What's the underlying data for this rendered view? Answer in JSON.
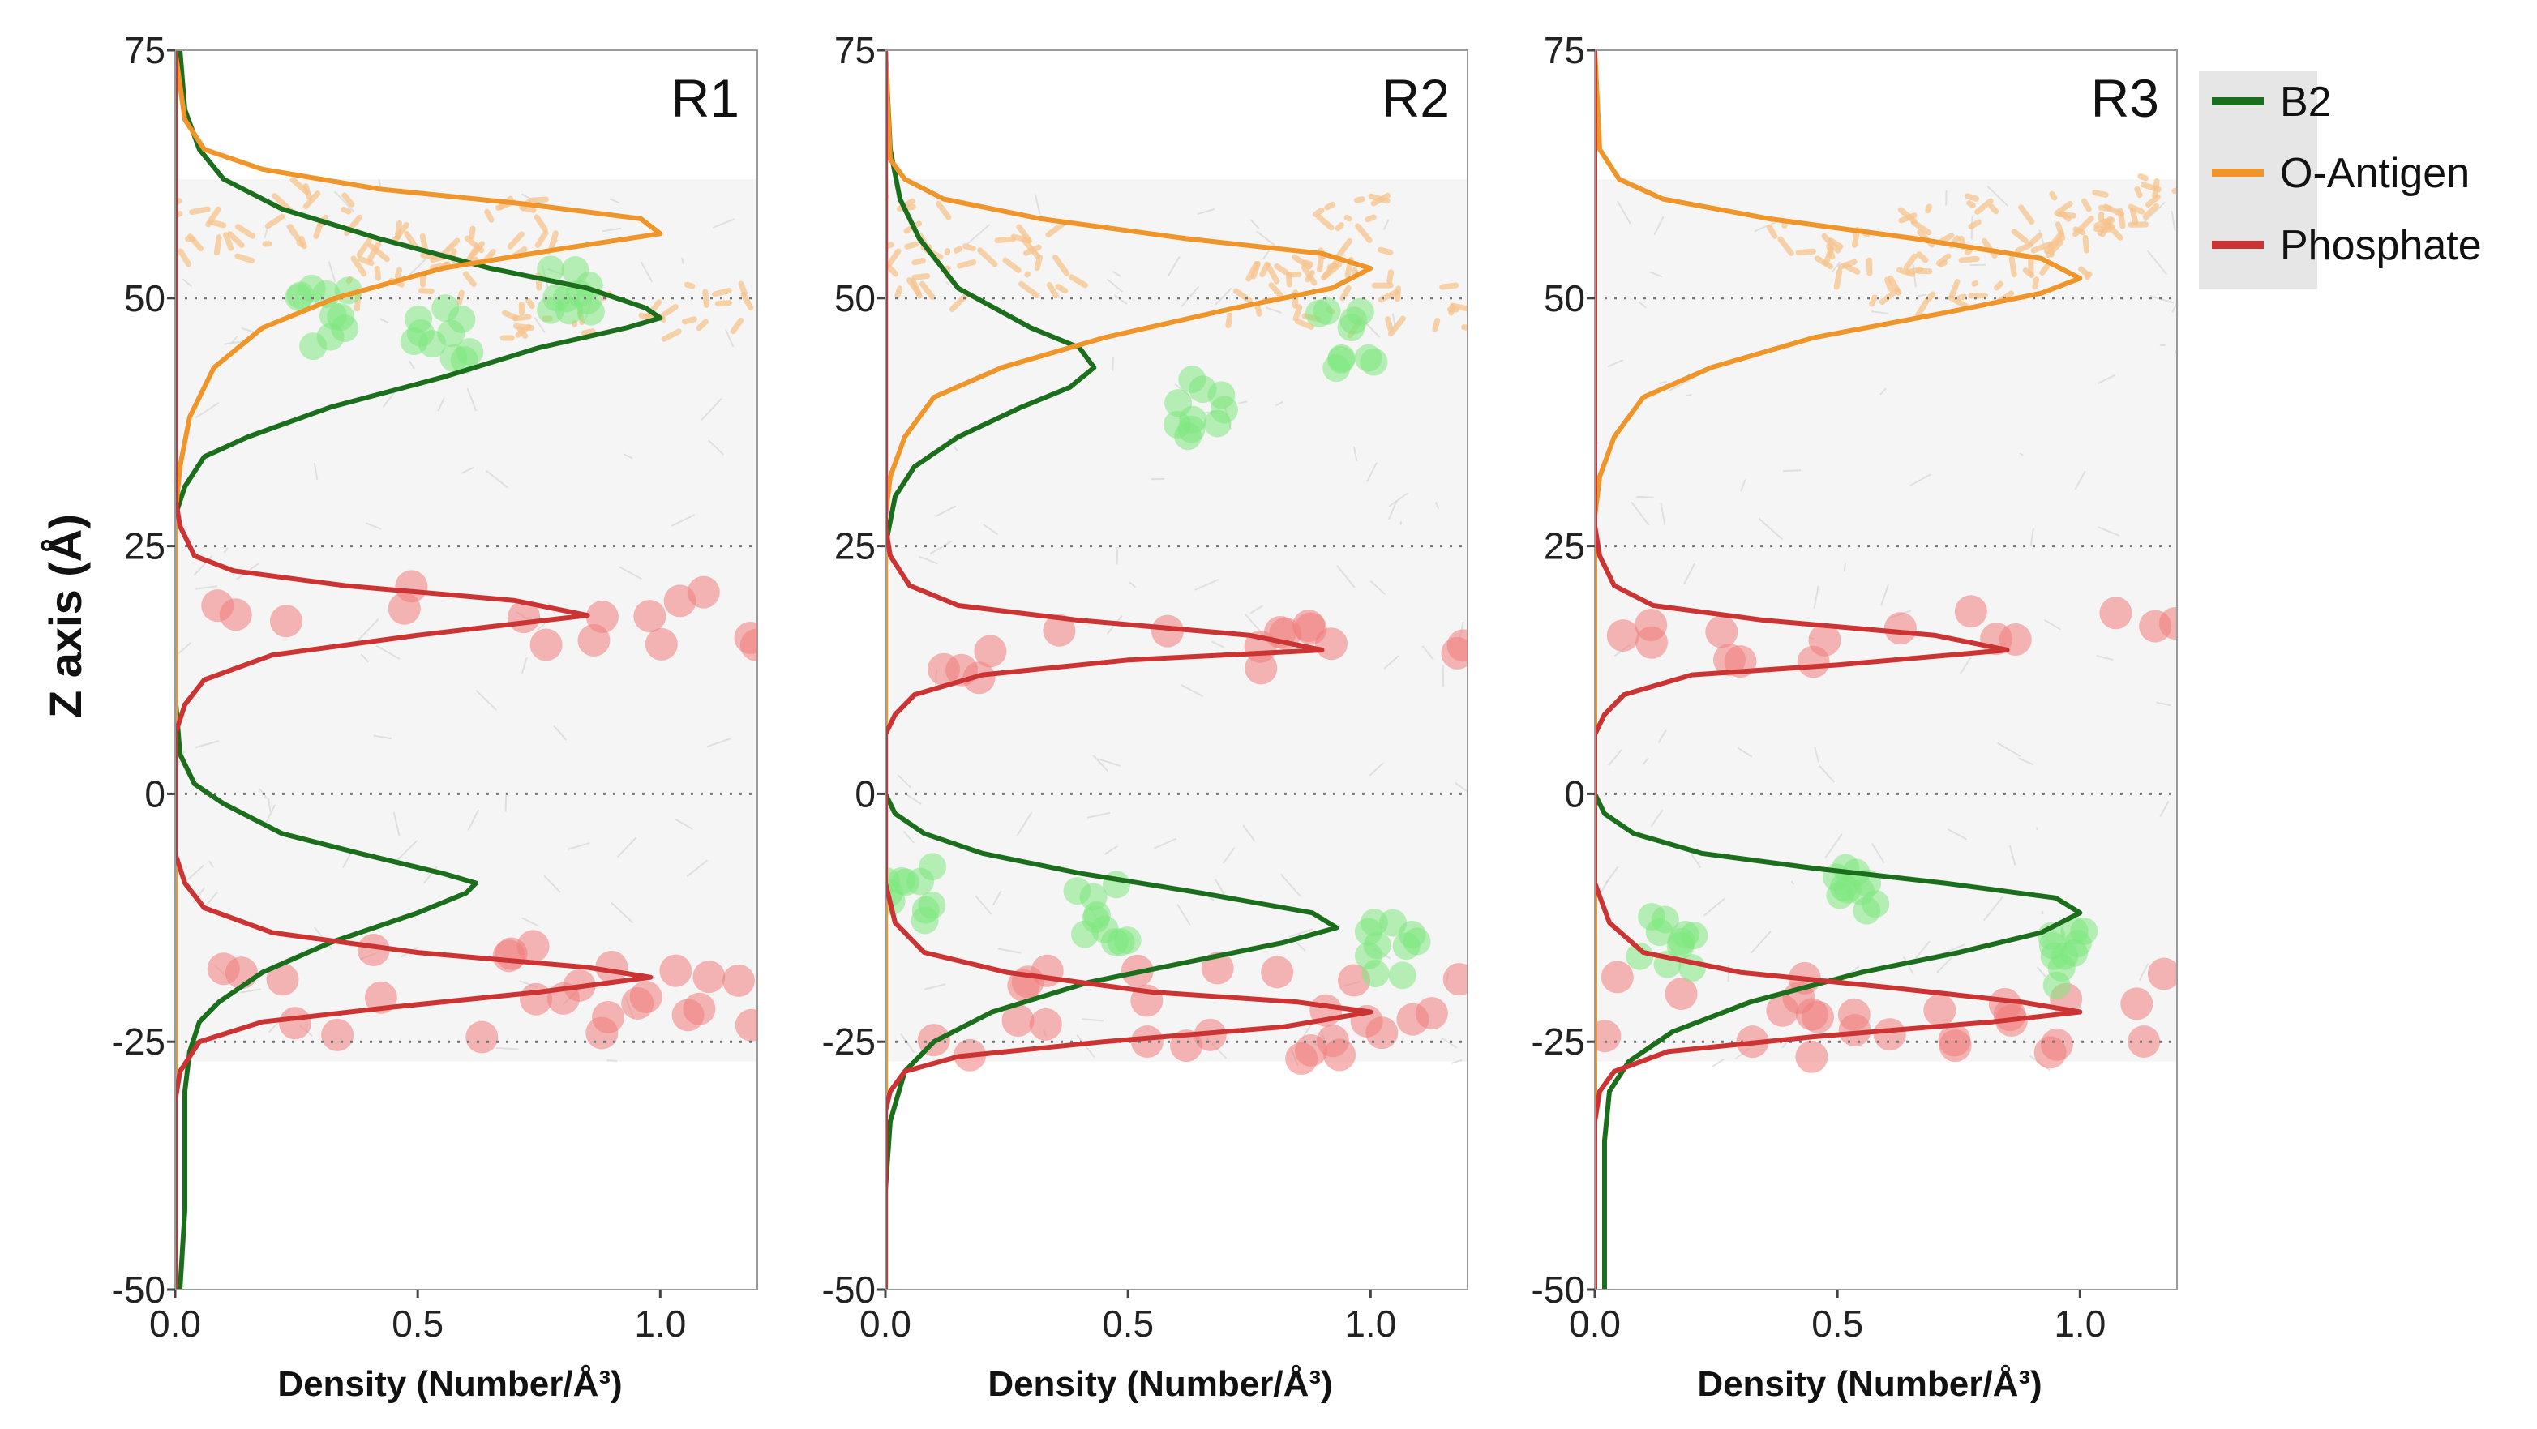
{
  "chart_data": {
    "type": "line",
    "orientation": "density on x, position on y",
    "ylabel": "Z axis (Å)",
    "xlabel": "Density (Number/Å³)",
    "xlim": [
      0,
      1.2
    ],
    "ylim": [
      -50,
      75
    ],
    "xticks": [
      "0.0",
      "0.5",
      "1.0"
    ],
    "yticks": [
      "75",
      "50",
      "25",
      "0",
      "-25",
      "-50"
    ],
    "ref_lines_y": [
      50,
      25,
      0,
      -25
    ],
    "legend": {
      "position": "right",
      "entries": [
        {
          "name": "B2",
          "color": "#1b6e1b"
        },
        {
          "name": "O-Antigen",
          "color": "#f0952a"
        },
        {
          "name": "Phosphate",
          "color": "#cc3333"
        }
      ]
    },
    "panels": [
      {
        "label": "R1",
        "series": [
          {
            "name": "B2",
            "color": "#1b6e1b",
            "points": [
              [
                0.01,
                -50
              ],
              [
                0.02,
                -42
              ],
              [
                0.02,
                -30
              ],
              [
                0.03,
                -26
              ],
              [
                0.05,
                -23
              ],
              [
                0.09,
                -21
              ],
              [
                0.18,
                -18
              ],
              [
                0.32,
                -15
              ],
              [
                0.5,
                -12
              ],
              [
                0.6,
                -10
              ],
              [
                0.62,
                -9
              ],
              [
                0.55,
                -8
              ],
              [
                0.38,
                -6
              ],
              [
                0.22,
                -4
              ],
              [
                0.1,
                -1
              ],
              [
                0.04,
                1
              ],
              [
                0.01,
                4
              ],
              [
                0.0,
                10
              ],
              [
                0.0,
                20
              ],
              [
                0.0,
                28
              ],
              [
                0.02,
                31
              ],
              [
                0.06,
                34
              ],
              [
                0.15,
                36
              ],
              [
                0.32,
                39
              ],
              [
                0.55,
                42
              ],
              [
                0.75,
                45
              ],
              [
                0.93,
                47
              ],
              [
                1.0,
                48
              ],
              [
                0.97,
                49
              ],
              [
                0.85,
                51
              ],
              [
                0.65,
                53
              ],
              [
                0.42,
                56
              ],
              [
                0.22,
                59
              ],
              [
                0.1,
                62
              ],
              [
                0.05,
                65
              ],
              [
                0.02,
                69
              ],
              [
                0.01,
                75
              ]
            ]
          },
          {
            "name": "O-Antigen",
            "color": "#f0952a",
            "points": [
              [
                0.0,
                -50
              ],
              [
                0.0,
                28
              ],
              [
                0.01,
                33
              ],
              [
                0.03,
                38
              ],
              [
                0.08,
                43
              ],
              [
                0.18,
                47
              ],
              [
                0.33,
                50
              ],
              [
                0.55,
                53
              ],
              [
                0.8,
                55
              ],
              [
                1.0,
                56.5
              ],
              [
                0.96,
                58
              ],
              [
                0.72,
                59.5
              ],
              [
                0.42,
                61
              ],
              [
                0.18,
                63
              ],
              [
                0.06,
                65
              ],
              [
                0.02,
                68
              ],
              [
                0.0,
                75
              ]
            ]
          },
          {
            "name": "Phosphate",
            "color": "#cc3333",
            "points": [
              [
                0.0,
                -50
              ],
              [
                0.0,
                -31
              ],
              [
                0.01,
                -28
              ],
              [
                0.05,
                -25
              ],
              [
                0.18,
                -23
              ],
              [
                0.45,
                -21.5
              ],
              [
                0.75,
                -20
              ],
              [
                0.98,
                -18.5
              ],
              [
                0.85,
                -17.5
              ],
              [
                0.5,
                -16
              ],
              [
                0.2,
                -14
              ],
              [
                0.06,
                -11.5
              ],
              [
                0.02,
                -9
              ],
              [
                0.0,
                -6
              ],
              [
                0.0,
                6
              ],
              [
                0.02,
                9
              ],
              [
                0.06,
                11.5
              ],
              [
                0.2,
                14
              ],
              [
                0.5,
                16
              ],
              [
                0.85,
                18
              ],
              [
                0.7,
                19.5
              ],
              [
                0.35,
                21
              ],
              [
                0.12,
                22.5
              ],
              [
                0.04,
                24
              ],
              [
                0.01,
                27
              ],
              [
                0.0,
                30
              ],
              [
                0.0,
                75
              ]
            ]
          }
        ]
      },
      {
        "label": "R2",
        "series": [
          {
            "name": "B2",
            "color": "#1b6e1b",
            "points": [
              [
                0.0,
                -50
              ],
              [
                0.0,
                -40
              ],
              [
                0.01,
                -33
              ],
              [
                0.04,
                -28
              ],
              [
                0.1,
                -25
              ],
              [
                0.22,
                -22
              ],
              [
                0.42,
                -19
              ],
              [
                0.62,
                -17
              ],
              [
                0.82,
                -15
              ],
              [
                0.93,
                -13.5
              ],
              [
                0.88,
                -12
              ],
              [
                0.65,
                -10
              ],
              [
                0.4,
                -8
              ],
              [
                0.2,
                -6
              ],
              [
                0.08,
                -4
              ],
              [
                0.02,
                -2
              ],
              [
                0.0,
                0
              ],
              [
                0.0,
                25
              ],
              [
                0.02,
                30
              ],
              [
                0.06,
                33
              ],
              [
                0.15,
                36
              ],
              [
                0.28,
                39
              ],
              [
                0.38,
                41
              ],
              [
                0.43,
                43
              ],
              [
                0.4,
                45
              ],
              [
                0.3,
                47
              ],
              [
                0.15,
                51
              ],
              [
                0.07,
                56
              ],
              [
                0.03,
                60
              ],
              [
                0.01,
                65
              ],
              [
                0.0,
                75
              ]
            ]
          },
          {
            "name": "O-Antigen",
            "color": "#f0952a",
            "points": [
              [
                0.0,
                -50
              ],
              [
                0.0,
                28
              ],
              [
                0.01,
                32
              ],
              [
                0.04,
                36
              ],
              [
                0.1,
                40
              ],
              [
                0.24,
                43
              ],
              [
                0.45,
                46
              ],
              [
                0.72,
                49
              ],
              [
                0.92,
                51
              ],
              [
                1.0,
                53
              ],
              [
                0.9,
                54.5
              ],
              [
                0.62,
                56
              ],
              [
                0.32,
                58
              ],
              [
                0.12,
                60
              ],
              [
                0.04,
                62
              ],
              [
                0.01,
                64
              ],
              [
                0.0,
                75
              ]
            ]
          },
          {
            "name": "Phosphate",
            "color": "#cc3333",
            "points": [
              [
                0.0,
                -50
              ],
              [
                0.0,
                -32
              ],
              [
                0.01,
                -30
              ],
              [
                0.04,
                -28
              ],
              [
                0.15,
                -26.5
              ],
              [
                0.45,
                -25
              ],
              [
                0.82,
                -23.5
              ],
              [
                1.0,
                -22
              ],
              [
                0.85,
                -21
              ],
              [
                0.55,
                -20
              ],
              [
                0.25,
                -18
              ],
              [
                0.08,
                -16
              ],
              [
                0.02,
                -13
              ],
              [
                0.0,
                -9
              ],
              [
                0.0,
                6
              ],
              [
                0.02,
                8
              ],
              [
                0.06,
                10
              ],
              [
                0.2,
                12
              ],
              [
                0.5,
                13.5
              ],
              [
                0.9,
                14.5
              ],
              [
                0.75,
                16
              ],
              [
                0.4,
                17.5
              ],
              [
                0.15,
                19
              ],
              [
                0.05,
                21
              ],
              [
                0.01,
                24
              ],
              [
                0.0,
                27
              ],
              [
                0.0,
                75
              ]
            ]
          }
        ]
      },
      {
        "label": "R3",
        "series": [
          {
            "name": "B2",
            "color": "#1b6e1b",
            "points": [
              [
                0.02,
                -50
              ],
              [
                0.02,
                -42
              ],
              [
                0.02,
                -35
              ],
              [
                0.03,
                -30
              ],
              [
                0.07,
                -27
              ],
              [
                0.16,
                -24
              ],
              [
                0.32,
                -21
              ],
              [
                0.55,
                -18
              ],
              [
                0.75,
                -16
              ],
              [
                0.92,
                -14
              ],
              [
                1.0,
                -12
              ],
              [
                0.95,
                -10.5
              ],
              [
                0.72,
                -9
              ],
              [
                0.45,
                -7.5
              ],
              [
                0.22,
                -6
              ],
              [
                0.08,
                -4
              ],
              [
                0.02,
                -2
              ],
              [
                0.0,
                0
              ],
              [
                0.0,
                75
              ]
            ]
          },
          {
            "name": "O-Antigen",
            "color": "#f0952a",
            "points": [
              [
                0.0,
                -50
              ],
              [
                0.0,
                28
              ],
              [
                0.01,
                32
              ],
              [
                0.04,
                36
              ],
              [
                0.1,
                40
              ],
              [
                0.24,
                43
              ],
              [
                0.45,
                46
              ],
              [
                0.72,
                48.5
              ],
              [
                0.92,
                50.5
              ],
              [
                1.0,
                52
              ],
              [
                0.92,
                54
              ],
              [
                0.66,
                56
              ],
              [
                0.36,
                58
              ],
              [
                0.14,
                60
              ],
              [
                0.05,
                62
              ],
              [
                0.01,
                65
              ],
              [
                0.0,
                75
              ]
            ]
          },
          {
            "name": "Phosphate",
            "color": "#cc3333",
            "points": [
              [
                0.0,
                -50
              ],
              [
                0.0,
                -33
              ],
              [
                0.01,
                -30
              ],
              [
                0.04,
                -28
              ],
              [
                0.15,
                -26
              ],
              [
                0.45,
                -24.5
              ],
              [
                0.82,
                -23
              ],
              [
                1.0,
                -22
              ],
              [
                0.88,
                -21
              ],
              [
                0.6,
                -19.5
              ],
              [
                0.3,
                -18
              ],
              [
                0.1,
                -16
              ],
              [
                0.03,
                -13
              ],
              [
                0.0,
                -9
              ],
              [
                0.0,
                6
              ],
              [
                0.02,
                8
              ],
              [
                0.06,
                10
              ],
              [
                0.2,
                12
              ],
              [
                0.5,
                13
              ],
              [
                0.85,
                14.5
              ],
              [
                0.7,
                16
              ],
              [
                0.35,
                17.5
              ],
              [
                0.12,
                19
              ],
              [
                0.04,
                21
              ],
              [
                0.01,
                24
              ],
              [
                0.0,
                27
              ],
              [
                0.0,
                75
              ]
            ]
          }
        ]
      }
    ]
  },
  "background": {
    "membrane_color": "#e9e9e9",
    "phosphate_bead_color": "#f07c7c",
    "b2_bead_color": "#7ee87e",
    "oantigen_color": "#f7c48e"
  }
}
